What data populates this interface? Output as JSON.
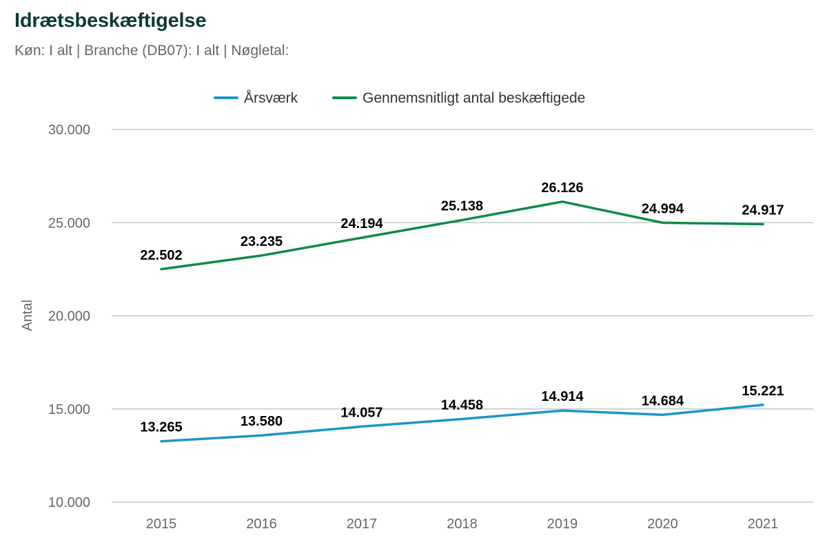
{
  "title": "Idrætsbeskæftigelse",
  "subtitle": "Køn: I alt | Branche (DB07): I alt | Nøgletal:",
  "colors": {
    "title": "#0c3b37",
    "series_arsvaerk": "#1a96c8",
    "series_gennemsnit": "#0f8a4a",
    "grid": "#b3c0c0",
    "tick": "#666666",
    "data_label": "#000000"
  },
  "chart_data": {
    "type": "line",
    "title": "Idrætsbeskæftigelse",
    "subtitle": "Køn: I alt | Branche (DB07): I alt | Nøgletal:",
    "xlabel": "",
    "ylabel": "Antal",
    "categories": [
      "2015",
      "2016",
      "2017",
      "2018",
      "2019",
      "2020",
      "2021"
    ],
    "ylim": [
      10000,
      30000
    ],
    "yticks": [
      10000,
      15000,
      20000,
      25000,
      30000
    ],
    "ytick_labels": [
      "10.000",
      "15.000",
      "20.000",
      "25.000",
      "30.000"
    ],
    "grid": true,
    "legend_position": "top-center",
    "series": [
      {
        "name": "Årsværk",
        "color_key": "series_arsvaerk",
        "values": [
          13265,
          13580,
          14057,
          14458,
          14914,
          14684,
          15221
        ],
        "labels": [
          "13.265",
          "13.580",
          "14.057",
          "14.458",
          "14.914",
          "14.684",
          "15.221"
        ]
      },
      {
        "name": "Gennemsnitligt antal beskæftigede",
        "color_key": "series_gennemsnit",
        "values": [
          22502,
          23235,
          24194,
          25138,
          26126,
          24994,
          24917
        ],
        "labels": [
          "22.502",
          "23.235",
          "24.194",
          "25.138",
          "26.126",
          "24.994",
          "24.917"
        ]
      }
    ]
  }
}
